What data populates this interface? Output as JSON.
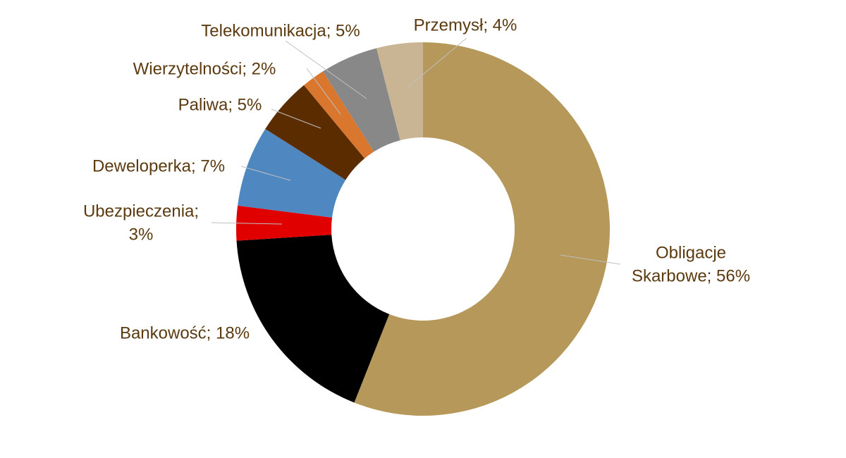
{
  "chart_data": {
    "type": "donut",
    "values": [
      56,
      18,
      3,
      7,
      5,
      2,
      5,
      4
    ],
    "value_labels": [
      [
        "Obligacje",
        "Skarbowe; 56%"
      ],
      [
        "Bankowość; 18%"
      ],
      [
        "Ubezpieczenia;",
        "3%"
      ],
      [
        "Deweloperka; 7%"
      ],
      [
        "Paliwa; 5%"
      ],
      [
        "Wierzytelności; 2%"
      ],
      [
        "Telekomunikacja; 5%"
      ],
      [
        "Przemysł; 4%"
      ]
    ],
    "colors": [
      "#b5985a",
      "#000000",
      "#e00000",
      "#4f88c0",
      "#5b2c00",
      "#d9772e",
      "#888888",
      "#c9b593"
    ]
  }
}
